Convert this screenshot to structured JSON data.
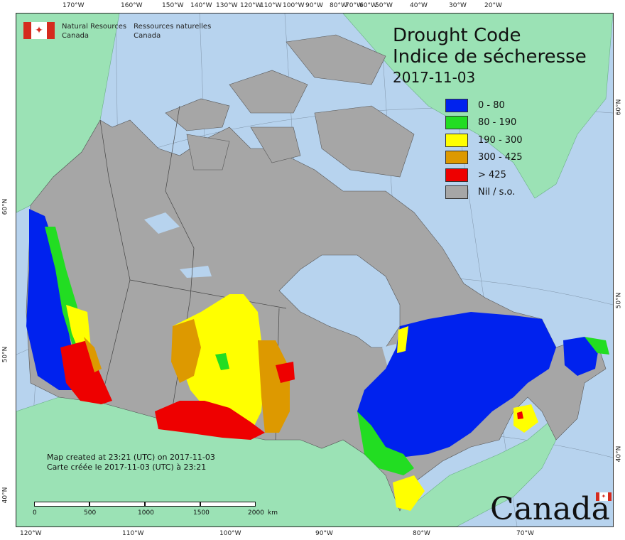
{
  "agency": {
    "en_line1": "Natural Resources",
    "en_line2": "Canada",
    "fr_line1": "Ressources naturelles",
    "fr_line2": "Canada"
  },
  "title": {
    "line1": "Drought Code",
    "line2": "Indice de sécheresse",
    "date": "2017-11-03"
  },
  "legend": [
    {
      "label": "0 - 80",
      "color": "#0022ee"
    },
    {
      "label": "80 - 190",
      "color": "#22dd22"
    },
    {
      "label": "190 - 300",
      "color": "#ffff00"
    },
    {
      "label": "300 - 425",
      "color": "#dd9900"
    },
    {
      "label": "> 425",
      "color": "#ee0000"
    },
    {
      "label": "Nil / s.o.",
      "color": "#a6a6a6"
    }
  ],
  "credit": {
    "line1": "Map created at 23:21 (UTC) on 2017-11-03",
    "line2": "Carte créée le 2017-11-03 (UTC) à 23:21"
  },
  "scale": {
    "ticks": [
      "0",
      "500",
      "1000",
      "1500",
      "2000"
    ],
    "unit": "km"
  },
  "wordmark": "Canada",
  "graticule": {
    "top": [
      "170°W",
      "160°W",
      "150°W",
      "140°W",
      "130°W",
      "120°W",
      "110°W",
      "100°W",
      "90°W",
      "80°W",
      "70°W",
      "60°W",
      "50°W",
      "40°W",
      "30°W",
      "20°W"
    ],
    "bottom": [
      "120°W",
      "110°W",
      "100°W",
      "90°W",
      "80°W",
      "70°W"
    ],
    "left": [
      "60°N",
      "50°N",
      "40°N"
    ],
    "right": [
      "60°N",
      "50°N",
      "40°N"
    ]
  },
  "colors": {
    "ocean": "#b7d3ee",
    "neighbor_land": "#9be2b5",
    "canada_nil": "#a6a6a6",
    "water_bodies": "#b7d3ee"
  }
}
